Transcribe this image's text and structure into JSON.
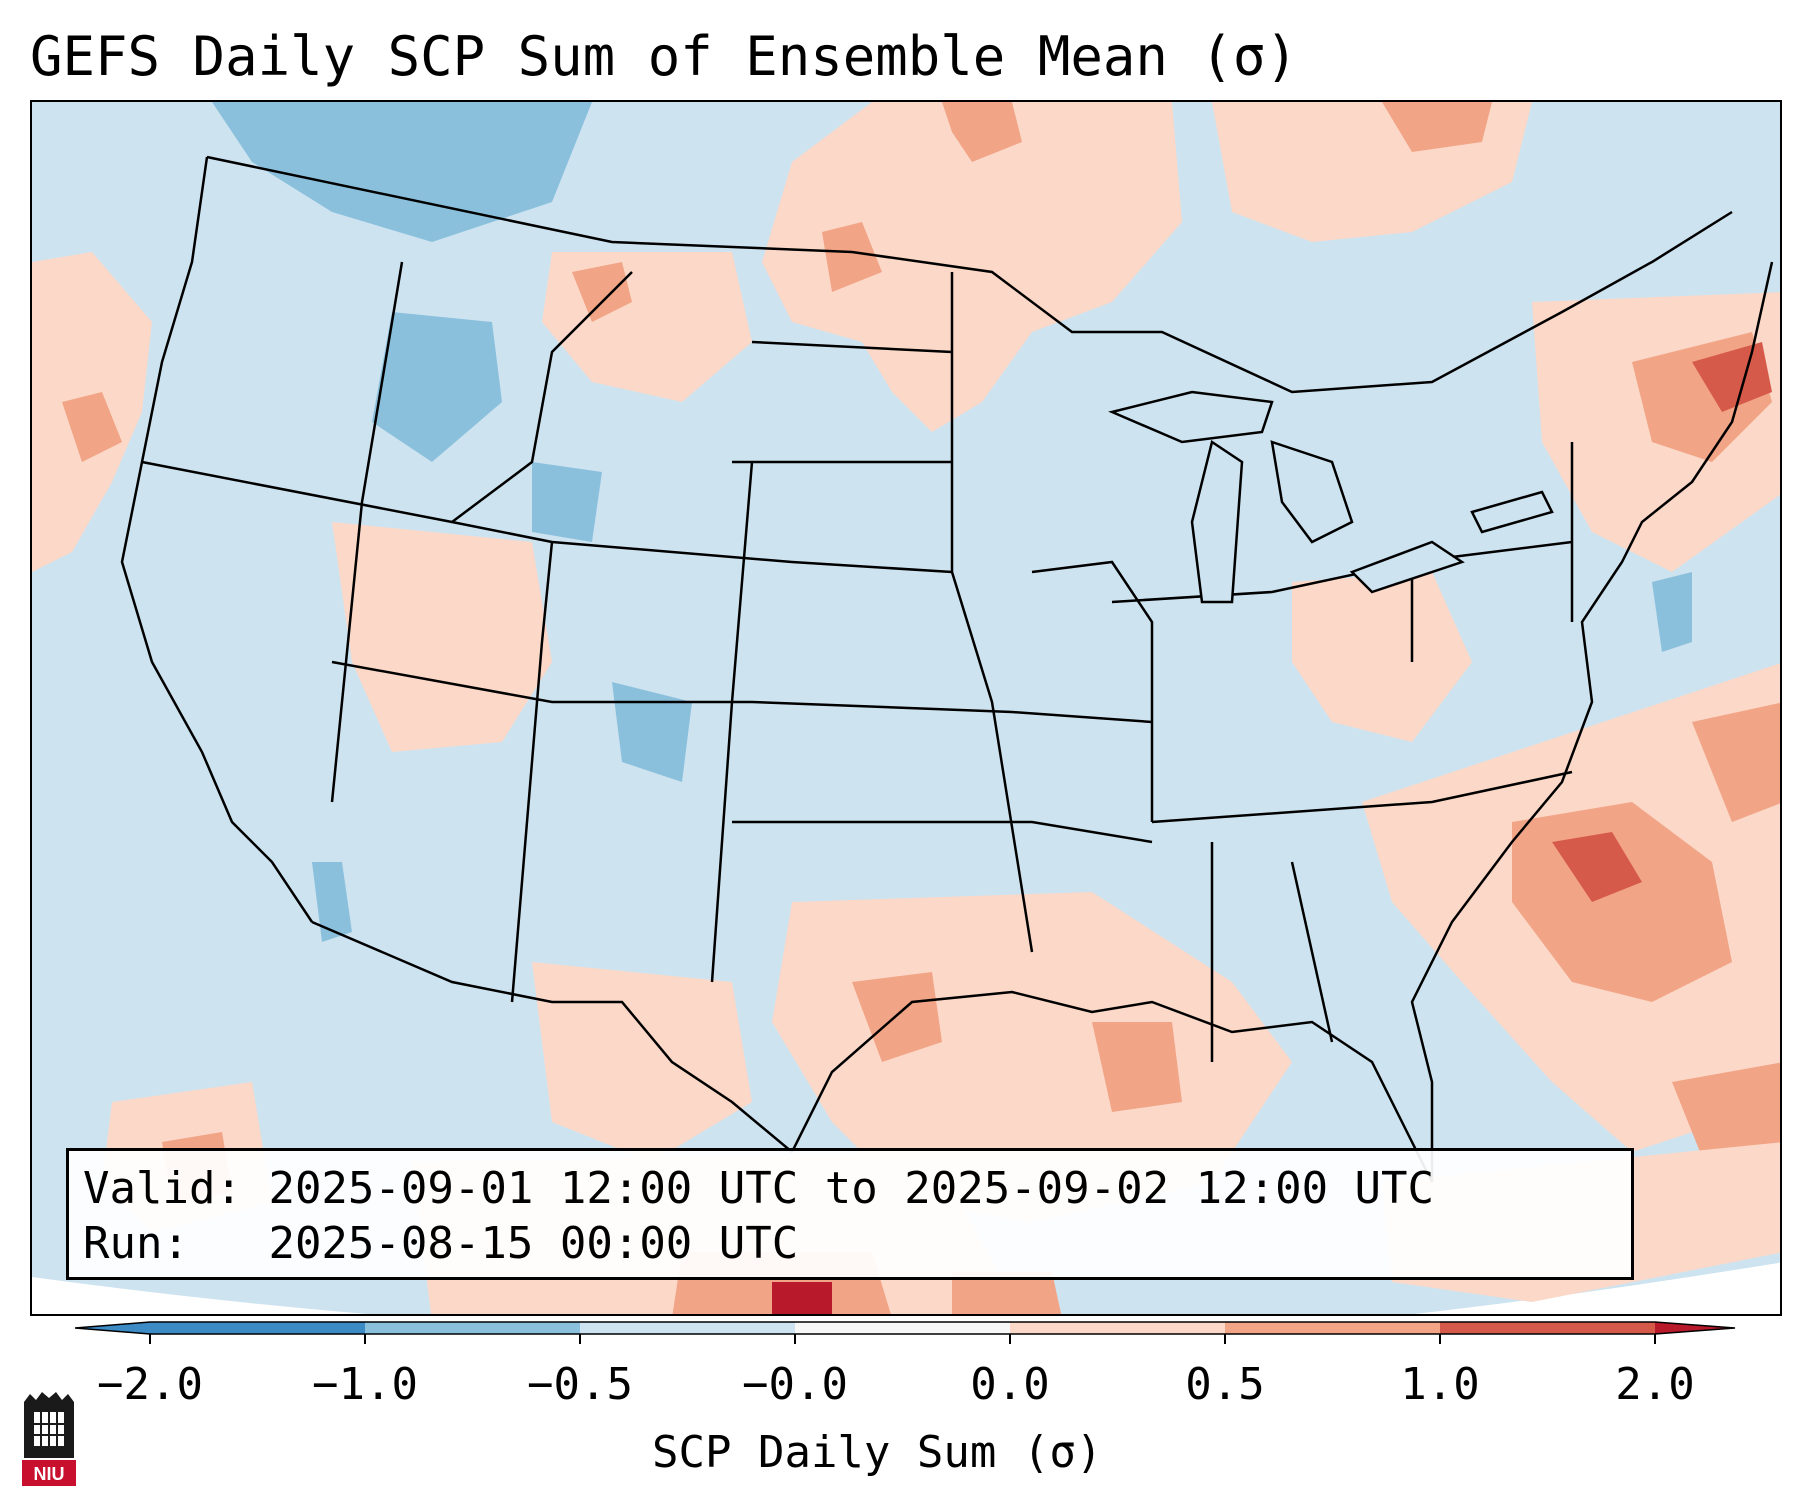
{
  "title": "GEFS Daily SCP Sum of Ensemble Mean (σ)",
  "info": {
    "valid_label": "Valid:",
    "valid_value": "2025-09-01 12:00 UTC to 2025-09-02 12:00 UTC",
    "run_label": "Run:",
    "run_value": "2025-08-15 00:00 UTC"
  },
  "colorbar": {
    "title": "SCP Daily Sum (σ)",
    "ticks": [
      "−2.0",
      "−1.0",
      "−0.5",
      "−0.0",
      "0.0",
      "0.5",
      "1.0",
      "2.0"
    ],
    "colors": [
      "#3d8bc5",
      "#8bc0dd",
      "#cde3f0",
      "#f7f7f7",
      "#fbd8c8",
      "#f2a486",
      "#d65a4a"
    ],
    "extend_low_color": "#3d8bc5",
    "extend_high_color": "#b91a2b"
  },
  "logo": {
    "text": "NIU",
    "icon": "niu-castle-logo-icon"
  },
  "map": {
    "background_color": "#cde3f0",
    "outside_color": "#ffffff",
    "line_color": "#000000"
  }
}
